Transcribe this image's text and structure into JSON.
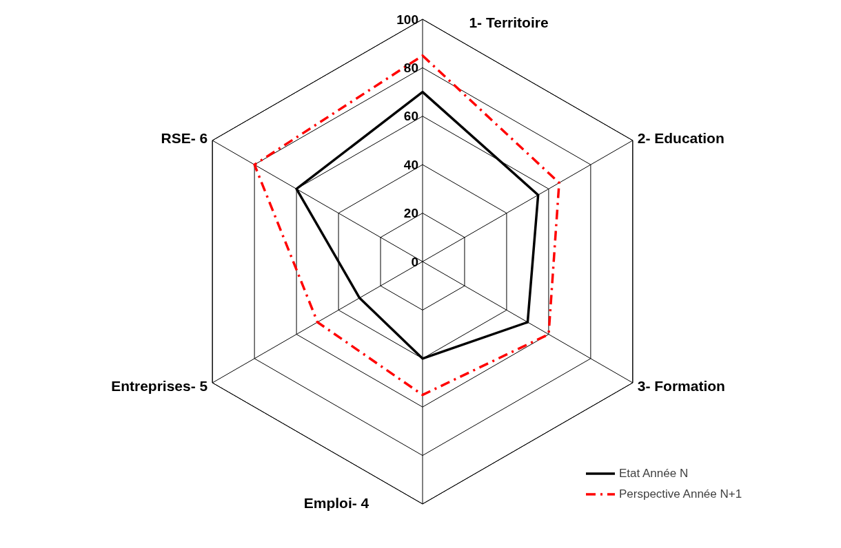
{
  "chart_data": {
    "type": "radar",
    "categories": [
      "1- Territoire",
      "2- Education",
      "3- Formation",
      "Emploi- 4",
      "Entreprises- 5",
      "RSE- 6"
    ],
    "series": [
      {
        "name": "Etat Année N",
        "color": "#000000",
        "line_style": "solid",
        "values": [
          70,
          55,
          50,
          40,
          30,
          60
        ]
      },
      {
        "name": "Perspective Année N+1",
        "color": "#ff0000",
        "line_style": "dashed",
        "values": [
          85,
          65,
          60,
          55,
          50,
          80
        ]
      }
    ],
    "ylim": [
      0,
      100
    ],
    "yticks": [
      0,
      20,
      40,
      60,
      80,
      100
    ],
    "grid": true,
    "legend": "bottom right"
  }
}
